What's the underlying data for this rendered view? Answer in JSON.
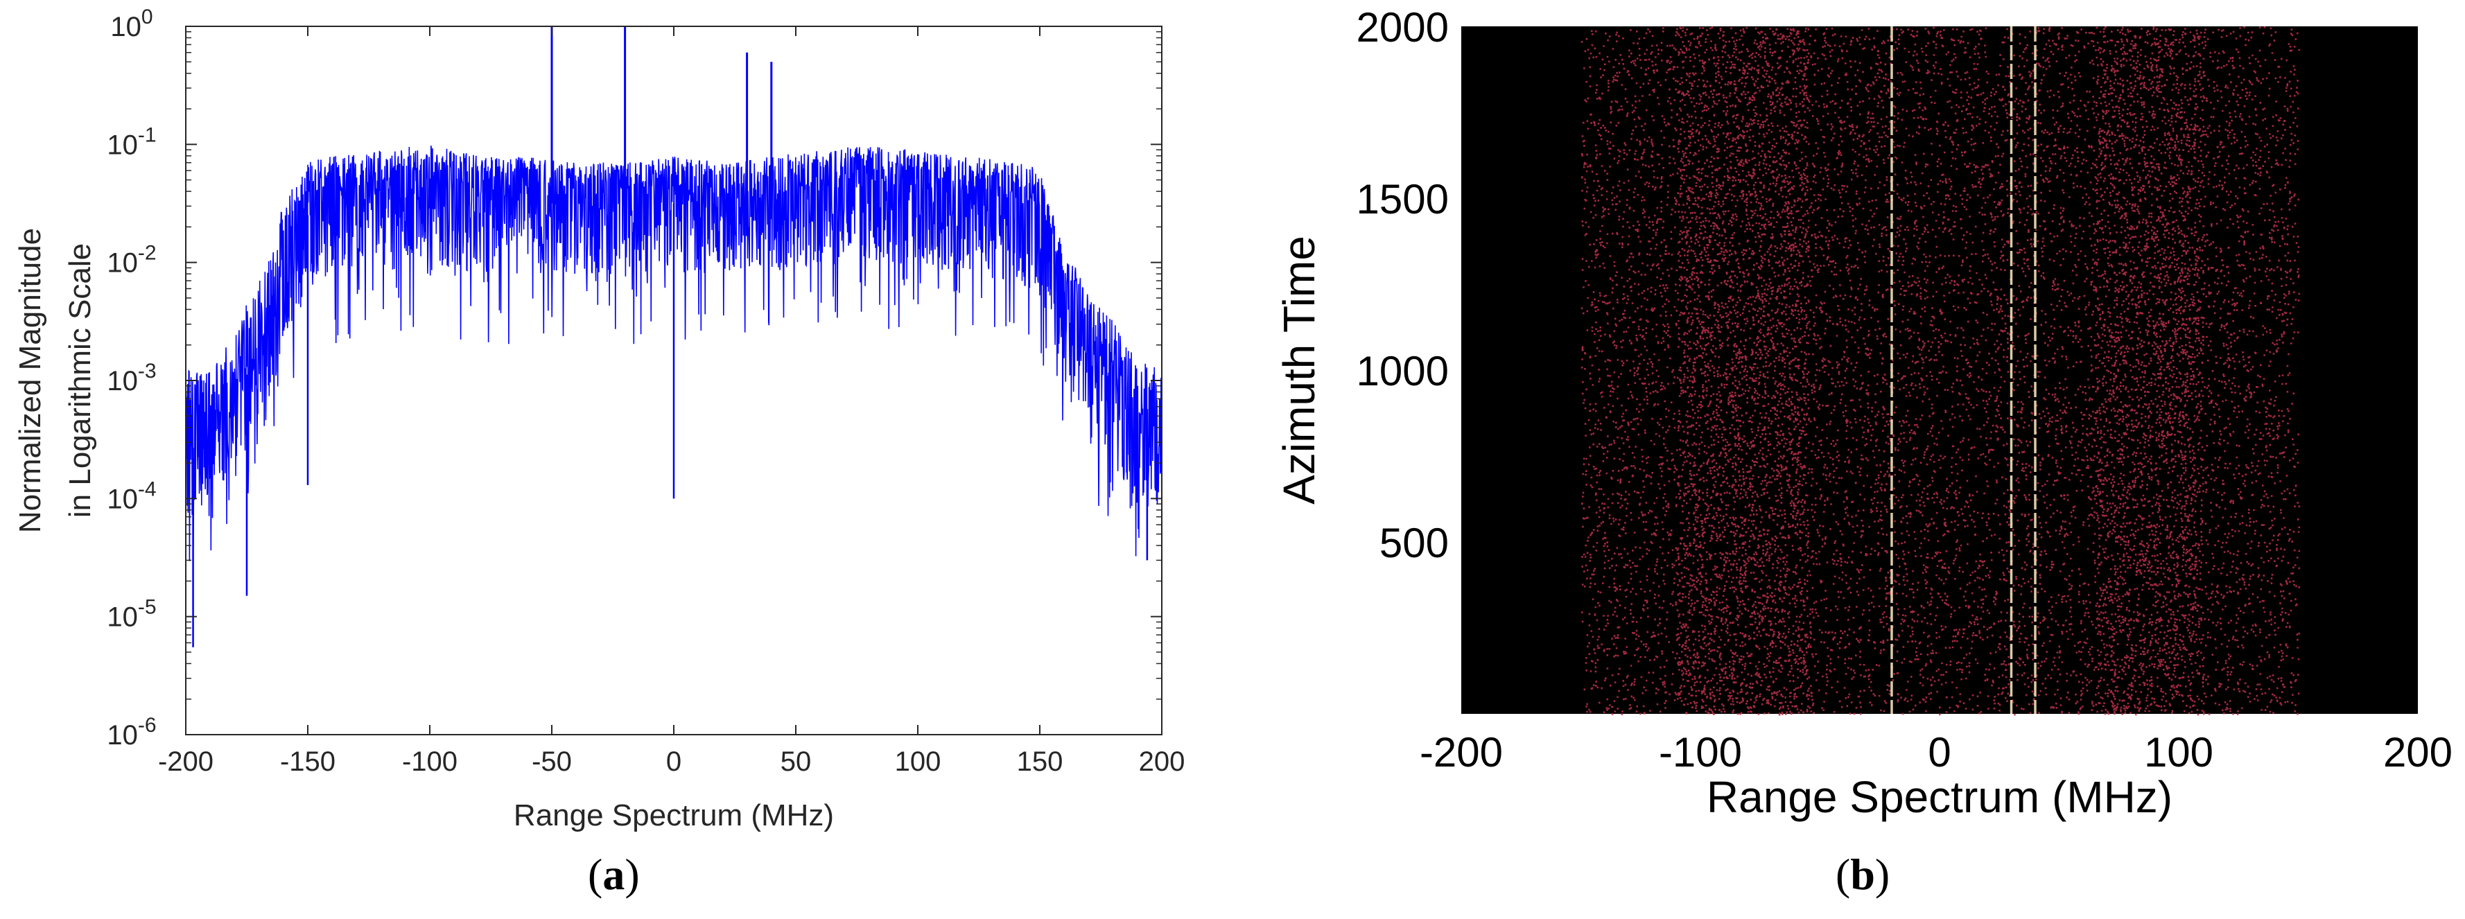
{
  "panels": [
    {
      "id": "a",
      "caption": "a",
      "chart_data": {
        "type": "line",
        "title": "",
        "xlabel": "Range Spectrum (MHz)",
        "ylabel_line1": "Normalized Magnitude",
        "ylabel_line2": "in Logarithmic Scale",
        "xlim": [
          -200,
          200
        ],
        "ylim_log10": [
          -6,
          0
        ],
        "yscale": "log",
        "grid": false,
        "color": "#0000ff",
        "x_ticks": [
          -200,
          -150,
          -100,
          -50,
          0,
          50,
          100,
          150,
          200
        ],
        "x_tick_labels": [
          "-200",
          "-150",
          "-100",
          "-50",
          "0",
          "50",
          "100",
          "150",
          "200"
        ],
        "y_tick_exponents": [
          -6,
          -5,
          -4,
          -3,
          -2,
          -1,
          0
        ],
        "y_tick_base": "10",
        "envelope": {
          "x": [
            -200,
            -190,
            -180,
            -170,
            -160,
            -150,
            -140,
            -120,
            -100,
            -80,
            -60,
            -40,
            -20,
            0,
            20,
            40,
            60,
            80,
            100,
            120,
            140,
            150,
            160,
            170,
            180,
            190,
            200
          ],
          "peak_log10": [
            -2.9,
            -2.9,
            -2.6,
            -2.1,
            -1.5,
            -1.15,
            -1.1,
            -1.05,
            -1.0,
            -1.1,
            -1.1,
            -1.15,
            -1.15,
            -1.1,
            -1.15,
            -1.1,
            -1.05,
            -1.0,
            -1.05,
            -1.1,
            -1.15,
            -1.2,
            -1.9,
            -2.2,
            -2.5,
            -2.8,
            -2.9
          ],
          "median_log10": [
            -3.6,
            -3.5,
            -3.2,
            -2.7,
            -2.1,
            -1.6,
            -1.5,
            -1.45,
            -1.4,
            -1.5,
            -1.5,
            -1.5,
            -1.5,
            -1.5,
            -1.5,
            -1.5,
            -1.45,
            -1.4,
            -1.45,
            -1.5,
            -1.55,
            -1.6,
            -2.4,
            -2.8,
            -3.2,
            -3.6,
            -3.5
          ],
          "min_log10": [
            -4.8,
            -4.6,
            -4.3,
            -3.9,
            -3.3,
            -2.8,
            -2.7,
            -2.6,
            -2.6,
            -2.7,
            -2.7,
            -2.7,
            -2.7,
            -2.7,
            -2.7,
            -2.7,
            -2.6,
            -2.6,
            -2.6,
            -2.7,
            -2.8,
            -2.9,
            -3.5,
            -3.9,
            -4.3,
            -4.6,
            -4.5
          ]
        },
        "spikes": [
          {
            "x": -50,
            "y": 1.0
          },
          {
            "x": -20,
            "y": 1.0
          },
          {
            "x": 30,
            "y": 0.6
          },
          {
            "x": 40,
            "y": 0.5
          }
        ],
        "dips": [
          {
            "x": -197,
            "y": 5.5e-06
          },
          {
            "x": -175,
            "y": 1.5e-05
          },
          {
            "x": -150,
            "y": 0.00013
          },
          {
            "x": 0,
            "y": 0.0001
          },
          {
            "x": 194,
            "y": 3e-05
          }
        ]
      }
    },
    {
      "id": "b",
      "caption": "b",
      "chart_data": {
        "type": "heatmap",
        "title": "",
        "xlabel": "Range Spectrum (MHz)",
        "ylabel": "Azimuth Time",
        "xlim": [
          -200,
          200
        ],
        "ylim": [
          0,
          2000
        ],
        "x_ticks": [
          -200,
          -100,
          0,
          100,
          200
        ],
        "x_tick_labels": [
          "-200",
          "-100",
          "0",
          "100",
          "200"
        ],
        "y_ticks": [
          500,
          1000,
          1500,
          2000
        ],
        "y_tick_labels": [
          "500",
          "1000",
          "1500",
          "2000"
        ],
        "background_color": "#000000",
        "dot_color": "#c0304a",
        "occupied_band": [
          -150,
          150
        ],
        "dense_bands": [
          [
            -110,
            -55
          ],
          [
            65,
            110
          ]
        ],
        "interference_lines_x": [
          -20,
          30,
          40
        ],
        "interference_color": "#f2e2b8"
      }
    }
  ]
}
